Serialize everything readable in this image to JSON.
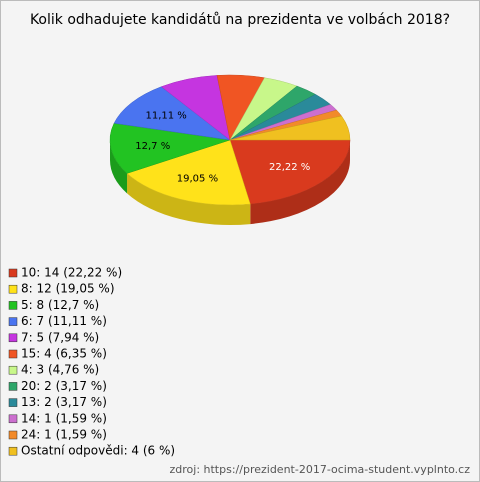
{
  "chart_data": {
    "type": "pie",
    "title": "Kolik odhadujete kandidátů na prezidenta ve volbách 2018?",
    "categories": [
      "10: 14 (22,22 %)",
      "8: 12 (19,05 %)",
      "5: 8 (12,7 %)",
      "6: 7 (11,11 %)",
      "7: 5 (7,94 %)",
      "15: 4 (6,35 %)",
      "4: 3 (4,76 %)",
      "20: 2 (3,17 %)",
      "13: 2 (3,17 %)",
      "14: 1 (1,59 %)",
      "24: 1 (1,59 %)",
      "Ostatní odpovědi: 4 (6 %)"
    ],
    "values": [
      22.22,
      19.05,
      12.7,
      11.11,
      7.94,
      6.35,
      4.76,
      3.17,
      3.17,
      1.59,
      1.59,
      6
    ],
    "value_labels": [
      "22,22 %",
      "19,05 %",
      "12,7 %",
      "11,11 %",
      null,
      null,
      null,
      null,
      null,
      null,
      null,
      null
    ],
    "colors": [
      "#d93a1e",
      "#ffe21a",
      "#22c322",
      "#4a74f0",
      "#c535e0",
      "#f05523",
      "#c8f78a",
      "#2ea66a",
      "#2a8a9a",
      "#cc6fcf",
      "#f28a2a",
      "#f0c020"
    ],
    "source": "zdroj: https://prezident-2017-ocima-student.vyplnto.cz"
  }
}
